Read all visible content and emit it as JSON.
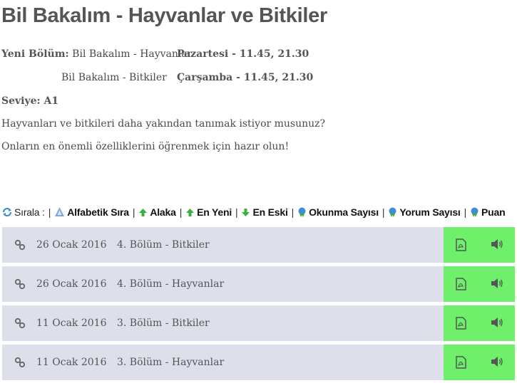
{
  "title": "Bil Bakalım - Hayvanlar ve Bitkiler",
  "schedule": {
    "label": "Yeni Bölüm:",
    "items": [
      {
        "name": "Bil Bakalım - Hayvanlar",
        "time": "Pazartesi - 11.45, 21.30"
      },
      {
        "name": "Bil Bakalım - Bitkiler",
        "time": "Çarşamba - 11.45, 21.30"
      }
    ]
  },
  "level": "Seviye: A1",
  "description": [
    "Hayvanları ve bitkileri daha yakından tanımak istiyor musunuz?",
    "Onların en önemli özelliklerini öğrenmek için hazır olun!"
  ],
  "sort": {
    "label": "Sırala :",
    "separator": "|",
    "options": [
      {
        "label": "Alfabetik Sıra",
        "icon": "alphabet-icon"
      },
      {
        "label": "Alaka",
        "icon": "arrow-up-icon"
      },
      {
        "label": "En Yeni",
        "icon": "arrow-up-icon"
      },
      {
        "label": "En Eski",
        "icon": "arrow-down-icon"
      },
      {
        "label": "Okunma Sayısı",
        "icon": "badge-icon"
      },
      {
        "label": "Yorum Sayısı",
        "icon": "badge-icon"
      },
      {
        "label": "Puan",
        "icon": "badge-icon"
      }
    ]
  },
  "episodes": [
    {
      "date": "26 Ocak 2016",
      "title": "4. Bölüm - Bitkiler"
    },
    {
      "date": "26 Ocak 2016",
      "title": "4. Bölüm - Hayvanlar"
    },
    {
      "date": "11 Ocak 2016",
      "title": "3. Bölüm - Bitkiler"
    },
    {
      "date": "11 Ocak 2016",
      "title": "3. Bölüm - Hayvanlar"
    }
  ],
  "colors": {
    "row_bg": "#dde0ea",
    "media_bg": "#6ef06a",
    "sort_icon_blue": "#3a8fd8",
    "sort_icon_green": "#3cae3c"
  }
}
